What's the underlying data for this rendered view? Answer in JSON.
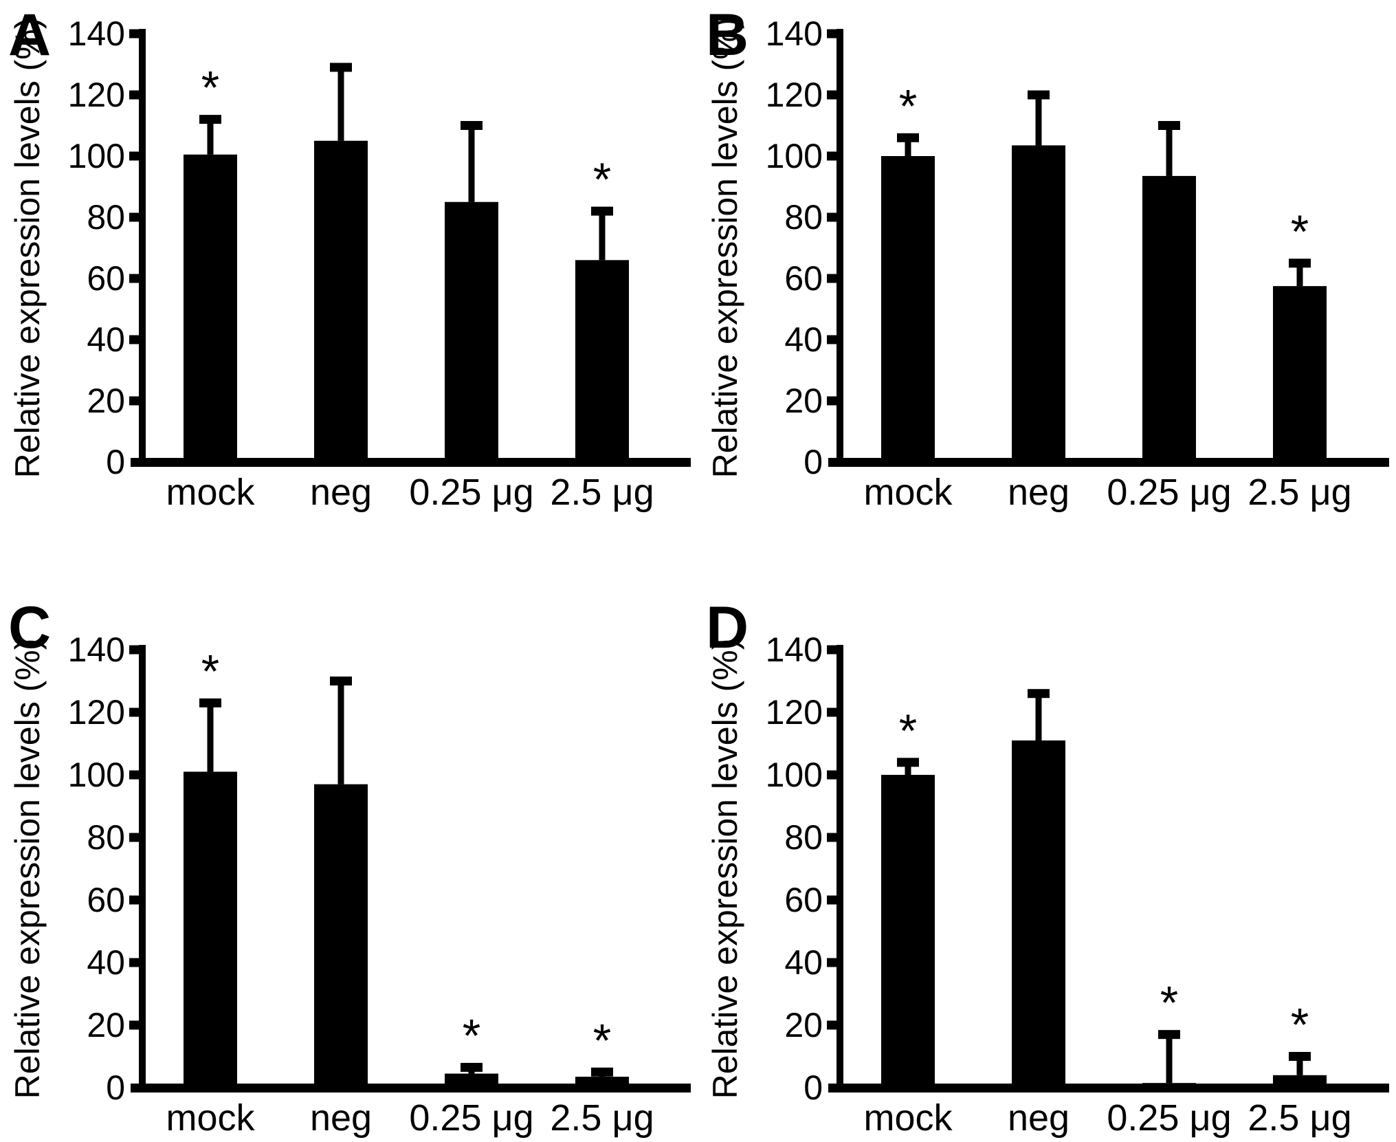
{
  "figure": {
    "background_color": "#ffffff",
    "bar_color": "#000000",
    "axis_color": "#000000",
    "significance_marker": "*",
    "ylabel": "Relative expression levels (%)",
    "categories": [
      "mock",
      "neg",
      "0.25 μg",
      "2.5 μg"
    ],
    "yticks": [
      0,
      20,
      40,
      60,
      80,
      100,
      120,
      140
    ],
    "ylim": [
      0,
      140
    ],
    "panel_letters": [
      "A",
      "B",
      "C",
      "D"
    ]
  },
  "chart_data": [
    {
      "panel": "A",
      "type": "bar",
      "title": "",
      "xlabel": "",
      "ylabel": "Relative expression levels (%)",
      "ylim": [
        0,
        140
      ],
      "yticks": [
        0,
        20,
        40,
        60,
        80,
        100,
        120,
        140
      ],
      "grid": false,
      "legend": false,
      "categories": [
        "mock",
        "neg",
        "0.25 μg",
        "2.5 μg"
      ],
      "values": [
        100.5,
        105,
        85,
        66
      ],
      "error_up": [
        11.5,
        24,
        25,
        16
      ],
      "significant": [
        true,
        false,
        false,
        true
      ]
    },
    {
      "panel": "B",
      "type": "bar",
      "title": "",
      "xlabel": "",
      "ylabel": "Relative expression levels (%)",
      "ylim": [
        0,
        140
      ],
      "yticks": [
        0,
        20,
        40,
        60,
        80,
        100,
        120,
        140
      ],
      "grid": false,
      "legend": false,
      "categories": [
        "mock",
        "neg",
        "0.25 μg",
        "2.5 μg"
      ],
      "values": [
        100,
        103.5,
        93.5,
        57.5
      ],
      "error_up": [
        6,
        16.5,
        16.5,
        7.5
      ],
      "significant": [
        true,
        false,
        false,
        true
      ]
    },
    {
      "panel": "C",
      "type": "bar",
      "title": "",
      "xlabel": "",
      "ylabel": "Relative expression levels (%)",
      "ylim": [
        0,
        140
      ],
      "yticks": [
        0,
        20,
        40,
        60,
        80,
        100,
        120,
        140
      ],
      "grid": false,
      "legend": false,
      "categories": [
        "mock",
        "neg",
        "0.25 μg",
        "2.5 μg"
      ],
      "values": [
        101,
        97,
        4.5,
        3.5
      ],
      "error_up": [
        22,
        33,
        2,
        1.5
      ],
      "significant": [
        true,
        false,
        true,
        true
      ]
    },
    {
      "panel": "D",
      "type": "bar",
      "title": "",
      "xlabel": "",
      "ylabel": "Relative expression levels (%)",
      "ylim": [
        0,
        140
      ],
      "yticks": [
        0,
        20,
        40,
        60,
        80,
        100,
        120,
        140
      ],
      "grid": false,
      "legend": false,
      "categories": [
        "mock",
        "neg",
        "0.25 μg",
        "2.5 μg"
      ],
      "values": [
        100,
        111,
        1.5,
        4
      ],
      "error_up": [
        4,
        15,
        15.5,
        6
      ],
      "significant": [
        true,
        false,
        true,
        true
      ]
    }
  ]
}
